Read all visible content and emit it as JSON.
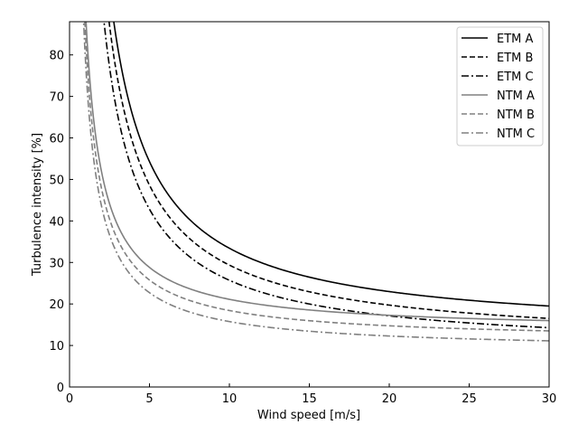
{
  "chart_data": {
    "type": "line",
    "xlabel": "Wind speed [m/s]",
    "ylabel": "Turbulence intensity [%]",
    "xlim": [
      0,
      30
    ],
    "ylim": [
      0,
      88
    ],
    "xticks": [
      0,
      5,
      10,
      15,
      20,
      25,
      30
    ],
    "yticks": [
      0,
      10,
      20,
      30,
      40,
      50,
      60,
      70,
      80
    ],
    "grid": false,
    "legend_position": "top-right",
    "series": [
      {
        "name": "ETM A",
        "color": "#000000",
        "linestyle": "solid",
        "x": [
          2.8,
          3.5,
          4,
          5,
          6,
          7,
          8,
          10,
          12,
          15,
          20,
          25,
          30
        ],
        "y": [
          88,
          73,
          64.7,
          53.2,
          46.2,
          41.5,
          38,
          33.2,
          29.9,
          26.7,
          23.6,
          21.6,
          20.3
        ]
      },
      {
        "name": "ETM B",
        "color": "#000000",
        "linestyle": "dashed",
        "x": [
          2.5,
          3,
          4,
          5,
          6,
          7,
          8,
          10,
          12,
          15,
          20,
          25,
          30
        ],
        "y": [
          88,
          74,
          57.9,
          48.2,
          41.9,
          37.4,
          34.1,
          29.4,
          26.3,
          23.1,
          19.9,
          18,
          16.7
        ]
      },
      {
        "name": "ETM C",
        "color": "#000000",
        "linestyle": "dashdot",
        "x": [
          2.2,
          3,
          4,
          5,
          6,
          7,
          8,
          10,
          12,
          15,
          20,
          25,
          30
        ],
        "y": [
          88,
          64.6,
          50.7,
          42.2,
          36.7,
          32.7,
          29.8,
          25.8,
          23.1,
          20.3,
          17.5,
          15.8,
          14.7
        ]
      },
      {
        "name": "NTM A",
        "color": "#808080",
        "linestyle": "solid",
        "x": [
          1.0,
          1.2,
          1.5,
          2,
          2.5,
          3,
          4,
          5,
          7,
          10,
          15,
          20,
          25,
          30
        ],
        "y": [
          88,
          78,
          66,
          53,
          45.5,
          39.5,
          32.5,
          28.5,
          24,
          21,
          18.3,
          17,
          16.1,
          15.5
        ]
      },
      {
        "name": "NTM B",
        "color": "#808080",
        "linestyle": "dashed",
        "x": [
          0.95,
          1.2,
          1.5,
          2,
          2.5,
          3,
          4,
          5,
          7,
          10,
          15,
          20,
          25,
          30
        ],
        "y": [
          88,
          72,
          60.5,
          48.3,
          41,
          36,
          29.4,
          25.6,
          21.4,
          18.5,
          15.9,
          14.6,
          13.8,
          13.2
        ]
      },
      {
        "name": "NTM C",
        "color": "#808080",
        "linestyle": "dashdot",
        "x": [
          0.9,
          1.2,
          1.5,
          2,
          2.5,
          3,
          4,
          5,
          7,
          10,
          15,
          20,
          25,
          30
        ],
        "y": [
          88,
          65,
          54,
          43.3,
          36.8,
          32.3,
          26.4,
          22.9,
          18.9,
          15.8,
          13.5,
          12.4,
          11.7,
          11.1
        ]
      }
    ]
  }
}
